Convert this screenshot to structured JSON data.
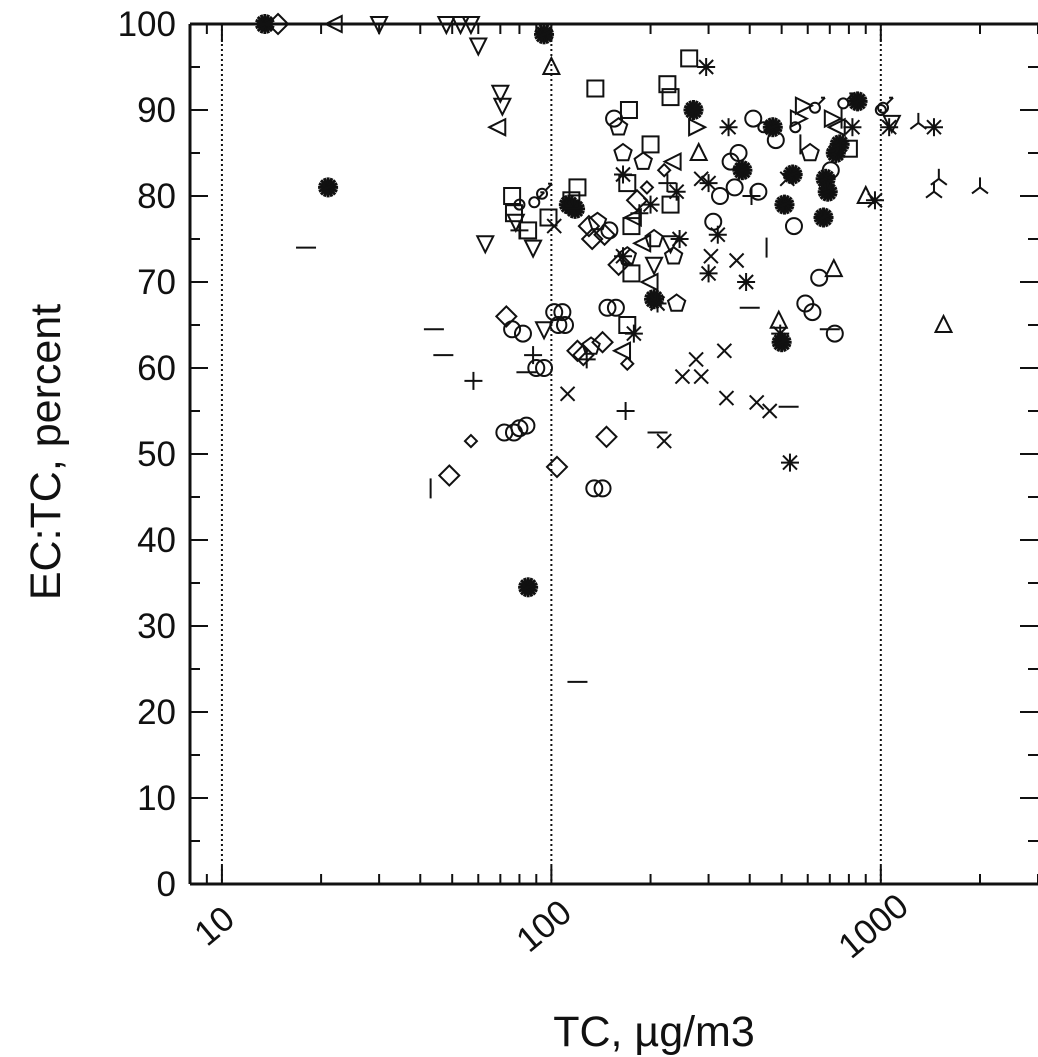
{
  "chart_data": {
    "type": "scatter",
    "xlabel": "TC, µg/m3",
    "ylabel": "EC:TC, percent",
    "x_scale": "log",
    "xlim": [
      8,
      3000
    ],
    "ylim": [
      0,
      100
    ],
    "x_tick_labels": [
      "10",
      "100",
      "1000"
    ],
    "y_tick_labels": [
      "0",
      "10",
      "20",
      "30",
      "40",
      "50",
      "60",
      "70",
      "80",
      "90",
      "100"
    ],
    "vertical_reference_lines": [
      10,
      100,
      1000
    ],
    "grid": false,
    "legend": "none",
    "colors": {
      "marks": "#111111",
      "background": "#ffffff"
    },
    "points": [
      {
        "x": 13.5,
        "y": 100,
        "m": "burst"
      },
      {
        "x": 14.8,
        "y": 100,
        "m": "diamond"
      },
      {
        "x": 22,
        "y": 100,
        "m": "tri-left"
      },
      {
        "x": 30,
        "y": 100,
        "m": "tri-down"
      },
      {
        "x": 48,
        "y": 100,
        "m": "tri-down"
      },
      {
        "x": 53,
        "y": 100,
        "m": "tri-down"
      },
      {
        "x": 57,
        "y": 100,
        "m": "tri-down"
      },
      {
        "x": 60,
        "y": 97.5,
        "m": "tri-down"
      },
      {
        "x": 95,
        "y": 98.8,
        "m": "burst"
      },
      {
        "x": 100,
        "y": 95,
        "m": "tri-up"
      },
      {
        "x": 21,
        "y": 81,
        "m": "burst"
      },
      {
        "x": 18,
        "y": 74,
        "m": "dash"
      },
      {
        "x": 85,
        "y": 34.5,
        "m": "burst"
      },
      {
        "x": 120,
        "y": 23.5,
        "m": "dash"
      },
      {
        "x": 70,
        "y": 92,
        "m": "tri-down"
      },
      {
        "x": 71,
        "y": 90.5,
        "m": "tri-down"
      },
      {
        "x": 69,
        "y": 88,
        "m": "tri-left"
      },
      {
        "x": 63,
        "y": 74.5,
        "m": "tri-down"
      },
      {
        "x": 44,
        "y": 64.5,
        "m": "dash"
      },
      {
        "x": 47,
        "y": 61.5,
        "m": "dash"
      },
      {
        "x": 58,
        "y": 58.5,
        "m": "plus"
      },
      {
        "x": 43,
        "y": 46,
        "m": "vbar"
      },
      {
        "x": 49,
        "y": 47.5,
        "m": "diamond"
      },
      {
        "x": 57,
        "y": 51.5,
        "m": "diamond-small"
      },
      {
        "x": 72,
        "y": 52.5,
        "m": "circle"
      },
      {
        "x": 77,
        "y": 52.5,
        "m": "circle"
      },
      {
        "x": 80,
        "y": 53,
        "m": "circle"
      },
      {
        "x": 84,
        "y": 53.3,
        "m": "circle"
      },
      {
        "x": 73,
        "y": 66,
        "m": "diamond"
      },
      {
        "x": 76,
        "y": 64.5,
        "m": "circle"
      },
      {
        "x": 82,
        "y": 64,
        "m": "circle"
      },
      {
        "x": 88,
        "y": 61.5,
        "m": "plus"
      },
      {
        "x": 90,
        "y": 60,
        "m": "circle"
      },
      {
        "x": 95,
        "y": 60,
        "m": "circle"
      },
      {
        "x": 84,
        "y": 59.5,
        "m": "dash"
      },
      {
        "x": 76,
        "y": 80,
        "m": "square"
      },
      {
        "x": 77,
        "y": 78,
        "m": "square"
      },
      {
        "x": 80,
        "y": 79,
        "m": "circle-small"
      },
      {
        "x": 85,
        "y": 76,
        "m": "square"
      },
      {
        "x": 88,
        "y": 74,
        "m": "tri-down"
      },
      {
        "x": 90,
        "y": 79.5,
        "m": "male"
      },
      {
        "x": 95,
        "y": 80.5,
        "m": "male"
      },
      {
        "x": 98,
        "y": 77.5,
        "m": "square"
      },
      {
        "x": 80,
        "y": 76,
        "m": "plus"
      },
      {
        "x": 78,
        "y": 77,
        "m": "tri-down"
      },
      {
        "x": 102,
        "y": 76.5,
        "m": "cross"
      },
      {
        "x": 95,
        "y": 64.5,
        "m": "tri-down"
      },
      {
        "x": 102,
        "y": 66.5,
        "m": "circle"
      },
      {
        "x": 108,
        "y": 66.5,
        "m": "circle"
      },
      {
        "x": 105,
        "y": 65,
        "m": "circle"
      },
      {
        "x": 110,
        "y": 65,
        "m": "circle"
      },
      {
        "x": 104,
        "y": 48.5,
        "m": "diamond"
      },
      {
        "x": 112,
        "y": 57,
        "m": "cross"
      },
      {
        "x": 113,
        "y": 79,
        "m": "burst"
      },
      {
        "x": 118,
        "y": 78.5,
        "m": "burst"
      },
      {
        "x": 115,
        "y": 79.5,
        "m": "square"
      },
      {
        "x": 120,
        "y": 81,
        "m": "square"
      },
      {
        "x": 120,
        "y": 62,
        "m": "diamond"
      },
      {
        "x": 125,
        "y": 61.5,
        "m": "diamond"
      },
      {
        "x": 128,
        "y": 61,
        "m": "plus"
      },
      {
        "x": 132,
        "y": 62.5,
        "m": "pentagon"
      },
      {
        "x": 136,
        "y": 92.5,
        "m": "square"
      },
      {
        "x": 130,
        "y": 76.5,
        "m": "diamond"
      },
      {
        "x": 133,
        "y": 75,
        "m": "diamond"
      },
      {
        "x": 138,
        "y": 77,
        "m": "pentagon"
      },
      {
        "x": 145,
        "y": 75.5,
        "m": "diamond"
      },
      {
        "x": 150,
        "y": 76,
        "m": "circle"
      },
      {
        "x": 148,
        "y": 67,
        "m": "circle"
      },
      {
        "x": 157,
        "y": 67,
        "m": "circle"
      },
      {
        "x": 143,
        "y": 63,
        "m": "diamond"
      },
      {
        "x": 147,
        "y": 52,
        "m": "diamond"
      },
      {
        "x": 135,
        "y": 46,
        "m": "circle"
      },
      {
        "x": 143,
        "y": 46,
        "m": "circle"
      },
      {
        "x": 155,
        "y": 89,
        "m": "circle"
      },
      {
        "x": 160,
        "y": 88,
        "m": "pentagon"
      },
      {
        "x": 165,
        "y": 85,
        "m": "pentagon"
      },
      {
        "x": 172,
        "y": 90,
        "m": "square"
      },
      {
        "x": 165,
        "y": 82.5,
        "m": "star"
      },
      {
        "x": 170,
        "y": 81.5,
        "m": "square"
      },
      {
        "x": 160,
        "y": 72,
        "m": "diamond"
      },
      {
        "x": 165,
        "y": 73,
        "m": "star"
      },
      {
        "x": 170,
        "y": 73,
        "m": "pentagon"
      },
      {
        "x": 175,
        "y": 71,
        "m": "square"
      },
      {
        "x": 175,
        "y": 76.5,
        "m": "square"
      },
      {
        "x": 178,
        "y": 77.5,
        "m": "tri-left"
      },
      {
        "x": 170,
        "y": 65,
        "m": "square"
      },
      {
        "x": 165,
        "y": 62,
        "m": "tri-left"
      },
      {
        "x": 170,
        "y": 60.5,
        "m": "diamond-small"
      },
      {
        "x": 178,
        "y": 64,
        "m": "star"
      },
      {
        "x": 168,
        "y": 55,
        "m": "plus"
      },
      {
        "x": 182,
        "y": 79.5,
        "m": "diamond"
      },
      {
        "x": 185,
        "y": 78,
        "m": "plus"
      },
      {
        "x": 190,
        "y": 74.5,
        "m": "tri-left"
      },
      {
        "x": 195,
        "y": 81,
        "m": "diamond-small"
      },
      {
        "x": 190,
        "y": 84,
        "m": "pentagon"
      },
      {
        "x": 200,
        "y": 86,
        "m": "square"
      },
      {
        "x": 200,
        "y": 79,
        "m": "star"
      },
      {
        "x": 205,
        "y": 75,
        "m": "pentagon"
      },
      {
        "x": 200,
        "y": 70,
        "m": "tri-left"
      },
      {
        "x": 205,
        "y": 72,
        "m": "tri-down"
      },
      {
        "x": 205,
        "y": 68,
        "m": "burst"
      },
      {
        "x": 210,
        "y": 67.5,
        "m": "star"
      },
      {
        "x": 210,
        "y": 52.5,
        "m": "dash"
      },
      {
        "x": 220,
        "y": 51.5,
        "m": "cross"
      },
      {
        "x": 225,
        "y": 93,
        "m": "square"
      },
      {
        "x": 230,
        "y": 91.5,
        "m": "square"
      },
      {
        "x": 225,
        "y": 81.5,
        "m": "plus"
      },
      {
        "x": 230,
        "y": 79,
        "m": "square"
      },
      {
        "x": 220,
        "y": 83,
        "m": "diamond-small"
      },
      {
        "x": 235,
        "y": 84,
        "m": "tri-left"
      },
      {
        "x": 240,
        "y": 80.5,
        "m": "star"
      },
      {
        "x": 230,
        "y": 74.5,
        "m": "tri-down"
      },
      {
        "x": 235,
        "y": 73,
        "m": "pentagon"
      },
      {
        "x": 240,
        "y": 67.5,
        "m": "pentagon"
      },
      {
        "x": 245,
        "y": 75,
        "m": "star"
      },
      {
        "x": 250,
        "y": 59,
        "m": "cross"
      },
      {
        "x": 262,
        "y": 96,
        "m": "square"
      },
      {
        "x": 270,
        "y": 90,
        "m": "burst"
      },
      {
        "x": 275,
        "y": 88,
        "m": "tri-right"
      },
      {
        "x": 280,
        "y": 85,
        "m": "tri-up"
      },
      {
        "x": 285,
        "y": 82,
        "m": "cross"
      },
      {
        "x": 275,
        "y": 61,
        "m": "cross"
      },
      {
        "x": 285,
        "y": 59,
        "m": "cross"
      },
      {
        "x": 295,
        "y": 95,
        "m": "star"
      },
      {
        "x": 300,
        "y": 81.5,
        "m": "star"
      },
      {
        "x": 300,
        "y": 71,
        "m": "star"
      },
      {
        "x": 305,
        "y": 73,
        "m": "cross"
      },
      {
        "x": 310,
        "y": 77,
        "m": "circle"
      },
      {
        "x": 320,
        "y": 75.5,
        "m": "star"
      },
      {
        "x": 325,
        "y": 80,
        "m": "circle"
      },
      {
        "x": 335,
        "y": 62,
        "m": "cross"
      },
      {
        "x": 340,
        "y": 56.5,
        "m": "cross"
      },
      {
        "x": 350,
        "y": 84,
        "m": "circle"
      },
      {
        "x": 345,
        "y": 88,
        "m": "star"
      },
      {
        "x": 360,
        "y": 81,
        "m": "circle"
      },
      {
        "x": 365,
        "y": 72.5,
        "m": "cross"
      },
      {
        "x": 370,
        "y": 85,
        "m": "circle"
      },
      {
        "x": 380,
        "y": 83,
        "m": "burst"
      },
      {
        "x": 390,
        "y": 70,
        "m": "star"
      },
      {
        "x": 400,
        "y": 67,
        "m": "dash"
      },
      {
        "x": 405,
        "y": 80,
        "m": "plus"
      },
      {
        "x": 410,
        "y": 89,
        "m": "circle"
      },
      {
        "x": 420,
        "y": 56,
        "m": "cross"
      },
      {
        "x": 425,
        "y": 80.5,
        "m": "circle"
      },
      {
        "x": 440,
        "y": 88,
        "m": "circle-small"
      },
      {
        "x": 450,
        "y": 74,
        "m": "vbar"
      },
      {
        "x": 460,
        "y": 55,
        "m": "cross"
      },
      {
        "x": 470,
        "y": 88,
        "m": "burst"
      },
      {
        "x": 480,
        "y": 86.5,
        "m": "circle"
      },
      {
        "x": 490,
        "y": 65.5,
        "m": "tri-up"
      },
      {
        "x": 495,
        "y": 64,
        "m": "star"
      },
      {
        "x": 500,
        "y": 63,
        "m": "burst"
      },
      {
        "x": 510,
        "y": 79,
        "m": "burst"
      },
      {
        "x": 520,
        "y": 82,
        "m": "cross"
      },
      {
        "x": 525,
        "y": 55.5,
        "m": "dash"
      },
      {
        "x": 530,
        "y": 49,
        "m": "star"
      },
      {
        "x": 540,
        "y": 82.5,
        "m": "burst"
      },
      {
        "x": 545,
        "y": 76.5,
        "m": "circle"
      },
      {
        "x": 550,
        "y": 88,
        "m": "circle-small"
      },
      {
        "x": 560,
        "y": 89,
        "m": "tri-right"
      },
      {
        "x": 570,
        "y": 86,
        "m": "vbar"
      },
      {
        "x": 580,
        "y": 90.5,
        "m": "tri-right"
      },
      {
        "x": 590,
        "y": 67.5,
        "m": "circle"
      },
      {
        "x": 610,
        "y": 85,
        "m": "pentagon"
      },
      {
        "x": 620,
        "y": 66.5,
        "m": "circle"
      },
      {
        "x": 640,
        "y": 90.5,
        "m": "male"
      },
      {
        "x": 650,
        "y": 70.5,
        "m": "circle"
      },
      {
        "x": 670,
        "y": 77.5,
        "m": "burst"
      },
      {
        "x": 680,
        "y": 82,
        "m": "burst"
      },
      {
        "x": 690,
        "y": 80.5,
        "m": "burst"
      },
      {
        "x": 700,
        "y": 64.5,
        "m": "dash"
      },
      {
        "x": 705,
        "y": 83,
        "m": "circle"
      },
      {
        "x": 710,
        "y": 89,
        "m": "tri-right"
      },
      {
        "x": 720,
        "y": 71.5,
        "m": "tri-up"
      },
      {
        "x": 725,
        "y": 64,
        "m": "circle"
      },
      {
        "x": 730,
        "y": 85,
        "m": "burst"
      },
      {
        "x": 740,
        "y": 88,
        "m": "tri-left"
      },
      {
        "x": 750,
        "y": 86,
        "m": "burst"
      },
      {
        "x": 760,
        "y": 89,
        "m": "vbar"
      },
      {
        "x": 780,
        "y": 91,
        "m": "male"
      },
      {
        "x": 800,
        "y": 85.5,
        "m": "square"
      },
      {
        "x": 820,
        "y": 88,
        "m": "star"
      },
      {
        "x": 850,
        "y": 91,
        "m": "burst"
      },
      {
        "x": 900,
        "y": 80,
        "m": "tri-up"
      },
      {
        "x": 960,
        "y": 79.5,
        "m": "star"
      },
      {
        "x": 1000,
        "y": 90,
        "m": "circle-small"
      },
      {
        "x": 1030,
        "y": 90.5,
        "m": "male"
      },
      {
        "x": 1060,
        "y": 88,
        "m": "star"
      },
      {
        "x": 1080,
        "y": 88.5,
        "m": "tri-down"
      },
      {
        "x": 1300,
        "y": 88.5,
        "m": "y-shape"
      },
      {
        "x": 1450,
        "y": 88,
        "m": "star"
      },
      {
        "x": 1500,
        "y": 82,
        "m": "y-shape"
      },
      {
        "x": 1450,
        "y": 80.5,
        "m": "y-shape"
      },
      {
        "x": 1550,
        "y": 65,
        "m": "tri-up"
      },
      {
        "x": 2000,
        "y": 81,
        "m": "y-shape"
      }
    ]
  }
}
